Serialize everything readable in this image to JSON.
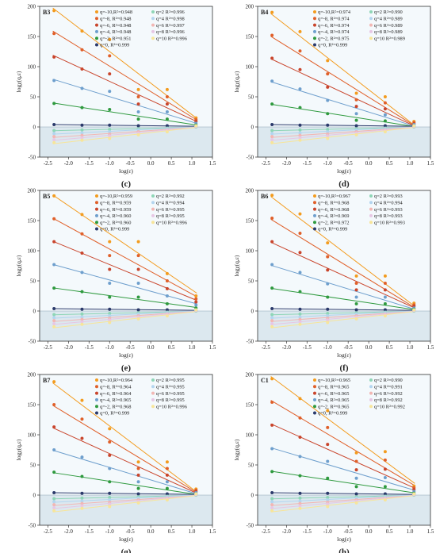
{
  "chart_data": [
    {
      "type": "scatter",
      "panel_id": "B3",
      "caption": "(c)",
      "xlabel": "log(ε)",
      "ylabel": "logχ(q,ε)",
      "xlim": [
        -2.7,
        1.5
      ],
      "ylim": [
        -50,
        200
      ],
      "xticks": [
        "-2.5",
        "-2.0",
        "-1.5",
        "-1.0",
        "-0.5",
        "0.0",
        "0.5",
        "1.0",
        "1.5"
      ],
      "yticks": [
        "-50",
        "0",
        "50",
        "100",
        "150",
        "200"
      ],
      "x": [
        -2.35,
        -1.67,
        -1.0,
        -0.3,
        0.4,
        1.1
      ],
      "series": [
        {
          "legend": "q=-10,R²=0.948",
          "q": -10,
          "color": "#f39c1f",
          "values": [
            193,
            159,
            145,
            62,
            62,
            15
          ]
        },
        {
          "legend": "q=-8, R²=0.948",
          "q": -8,
          "color": "#e0602a",
          "values": [
            155,
            128,
            118,
            50,
            50,
            12
          ]
        },
        {
          "legend": "q=-6, R²=0.948",
          "q": -6,
          "color": "#c9452c",
          "values": [
            116,
            96,
            88,
            38,
            38,
            9
          ]
        },
        {
          "legend": "q=-4, R²=0.948",
          "q": -4,
          "color": "#6e9fcd",
          "values": [
            77,
            64,
            59,
            25,
            25,
            6
          ]
        },
        {
          "legend": "q=-2, R²=0.951",
          "q": -2,
          "color": "#2f9a3f",
          "values": [
            39,
            32,
            29,
            13,
            13,
            3
          ]
        },
        {
          "legend": "q=0, R²=0.999",
          "q": 0,
          "color": "#2b3a6b",
          "values": [
            4,
            3,
            3,
            2,
            2,
            1
          ]
        },
        {
          "legend": "q=2 R²=0.996",
          "q": 2,
          "color": "#8fd6b7",
          "values": [
            -6,
            -5,
            -4,
            -3,
            -2,
            0
          ]
        },
        {
          "legend": "q=4 R²=0.998",
          "q": 4,
          "color": "#b3d5ef",
          "values": [
            -11,
            -10,
            -8,
            -5,
            -3,
            1
          ]
        },
        {
          "legend": "q=6 R²=0.997",
          "q": 6,
          "color": "#f2b7b4",
          "values": [
            -16,
            -14,
            -12,
            -8,
            -5,
            1
          ]
        },
        {
          "legend": "q=8 R²=0.996",
          "q": 8,
          "color": "#e7c7e4",
          "values": [
            -21,
            -18,
            -15,
            -10,
            -6,
            1
          ]
        },
        {
          "legend": "q=10 R²=0.996",
          "q": 10,
          "color": "#f7e59a",
          "values": [
            -26,
            -22,
            -19,
            -13,
            -8,
            2
          ]
        }
      ]
    },
    {
      "type": "scatter",
      "panel_id": "B4",
      "caption": "(d)",
      "xlabel": "log(ε)",
      "ylabel": "logχ(q,ε)",
      "xlim": [
        -2.7,
        1.5
      ],
      "ylim": [
        -50,
        200
      ],
      "xticks": [
        "-2.5",
        "-2.0",
        "-1.5",
        "-1.0",
        "-0.5",
        "0.0",
        "0.5",
        "1.0",
        "1.5"
      ],
      "yticks": [
        "-50",
        "0",
        "50",
        "100",
        "150",
        "200"
      ],
      "x": [
        -2.35,
        -1.67,
        -1.0,
        -0.3,
        0.4,
        1.1
      ],
      "series": [
        {
          "legend": "q=-10,R²=0.974",
          "q": -10,
          "color": "#f39c1f",
          "values": [
            190,
            158,
            110,
            56,
            50,
            9
          ]
        },
        {
          "legend": "q=-8, R²=0.974",
          "q": -8,
          "color": "#e0602a",
          "values": [
            152,
            126,
            88,
            45,
            40,
            7
          ]
        },
        {
          "legend": "q=-6, R²=0.974",
          "q": -6,
          "color": "#c9452c",
          "values": [
            114,
            95,
            66,
            34,
            30,
            5
          ]
        },
        {
          "legend": "q=-4, R²=0.974",
          "q": -4,
          "color": "#6e9fcd",
          "values": [
            76,
            63,
            44,
            22,
            20,
            4
          ]
        },
        {
          "legend": "q=-2, R²=0.975",
          "q": -2,
          "color": "#2f9a3f",
          "values": [
            38,
            32,
            22,
            11,
            10,
            2
          ]
        },
        {
          "legend": "q=0, R²=0.999",
          "q": 0,
          "color": "#2b3a6b",
          "values": [
            4,
            3,
            3,
            2,
            2,
            1
          ]
        },
        {
          "legend": "q=2 R²=0.990",
          "q": 2,
          "color": "#8fd6b7",
          "values": [
            -6,
            -5,
            -4,
            -3,
            -2,
            0
          ]
        },
        {
          "legend": "q=4 R²=0.989",
          "q": 4,
          "color": "#b3d5ef",
          "values": [
            -11,
            -10,
            -8,
            -5,
            -3,
            1
          ]
        },
        {
          "legend": "q=6 R²=0.989",
          "q": 6,
          "color": "#f2b7b4",
          "values": [
            -16,
            -14,
            -12,
            -8,
            -5,
            1
          ]
        },
        {
          "legend": "q=8 R²=0.989",
          "q": 8,
          "color": "#e7c7e4",
          "values": [
            -21,
            -18,
            -15,
            -10,
            -6,
            1
          ]
        },
        {
          "legend": "q=10 R²=0.989",
          "q": 10,
          "color": "#f7e59a",
          "values": [
            -26,
            -22,
            -19,
            -13,
            -8,
            2
          ]
        }
      ]
    },
    {
      "type": "scatter",
      "panel_id": "B5",
      "caption": "(e)",
      "xlabel": "log(ε)",
      "ylabel": "logχ(q,ε)",
      "xlim": [
        -2.7,
        1.5
      ],
      "ylim": [
        -50,
        200
      ],
      "xticks": [
        "-2.5",
        "-2.0",
        "-1.5",
        "-1.0",
        "-0.5",
        "0.0",
        "0.5",
        "1.0",
        "1.5"
      ],
      "yticks": [
        "-50",
        "0",
        "50",
        "100",
        "150",
        "200"
      ],
      "x": [
        -2.35,
        -1.67,
        -1.0,
        -0.3,
        0.4,
        1.1
      ],
      "series": [
        {
          "legend": "q=-10,R²=0.959",
          "q": -10,
          "color": "#f39c1f",
          "values": [
            191,
            160,
            115,
            115,
            62,
            25
          ]
        },
        {
          "legend": "q=-8, R²=0.959",
          "q": -8,
          "color": "#e0602a",
          "values": [
            153,
            128,
            92,
            92,
            50,
            20
          ]
        },
        {
          "legend": "q=-6, R²=0.959",
          "q": -6,
          "color": "#c9452c",
          "values": [
            115,
            96,
            69,
            69,
            37,
            15
          ]
        },
        {
          "legend": "q=-4, R²=0.960",
          "q": -4,
          "color": "#6e9fcd",
          "values": [
            77,
            64,
            46,
            46,
            25,
            10
          ]
        },
        {
          "legend": "q=-2, R²=0.960",
          "q": -2,
          "color": "#2f9a3f",
          "values": [
            38,
            32,
            23,
            23,
            12,
            5
          ]
        },
        {
          "legend": "q=0, R²=0.999",
          "q": 0,
          "color": "#2b3a6b",
          "values": [
            4,
            3,
            3,
            2,
            2,
            1
          ]
        },
        {
          "legend": "q=2 R²=0.992",
          "q": 2,
          "color": "#8fd6b7",
          "values": [
            -6,
            -5,
            -4,
            -3,
            -2,
            0
          ]
        },
        {
          "legend": "q=4 R²=0.994",
          "q": 4,
          "color": "#b3d5ef",
          "values": [
            -11,
            -10,
            -8,
            -5,
            -3,
            1
          ]
        },
        {
          "legend": "q=6 R²=0.995",
          "q": 6,
          "color": "#f2b7b4",
          "values": [
            -16,
            -14,
            -12,
            -8,
            -5,
            1
          ]
        },
        {
          "legend": "q=8 R²=0.995",
          "q": 8,
          "color": "#e7c7e4",
          "values": [
            -21,
            -18,
            -15,
            -10,
            -6,
            1
          ]
        },
        {
          "legend": "q=10 R²=0.996",
          "q": 10,
          "color": "#f7e59a",
          "values": [
            -26,
            -22,
            -19,
            -13,
            -8,
            2
          ]
        }
      ]
    },
    {
      "type": "scatter",
      "panel_id": "B6",
      "caption": "(f)",
      "xlabel": "log(ε)",
      "ylabel": "logχ(q,ε)",
      "xlim": [
        -2.7,
        1.5
      ],
      "ylim": [
        -50,
        200
      ],
      "xticks": [
        "-2.5",
        "-2.0",
        "-1.5",
        "-1.0",
        "-0.5",
        "0.0",
        "0.5",
        "1.0",
        "1.5"
      ],
      "yticks": [
        "-50",
        "0",
        "50",
        "100",
        "150",
        "200"
      ],
      "x": [
        -2.35,
        -1.67,
        -1.0,
        -0.3,
        0.4,
        1.1
      ],
      "series": [
        {
          "legend": "q=-10,R²=0.967",
          "q": -10,
          "color": "#f39c1f",
          "values": [
            192,
            161,
            113,
            58,
            58,
            13
          ]
        },
        {
          "legend": "q=-8, R²=0.968",
          "q": -8,
          "color": "#e0602a",
          "values": [
            154,
            129,
            90,
            46,
            46,
            10
          ]
        },
        {
          "legend": "q=-6, R²=0.968",
          "q": -6,
          "color": "#c9452c",
          "values": [
            115,
            97,
            68,
            35,
            35,
            8
          ]
        },
        {
          "legend": "q=-4, R²=0.969",
          "q": -4,
          "color": "#6e9fcd",
          "values": [
            77,
            64,
            45,
            23,
            23,
            5
          ]
        },
        {
          "legend": "q=-2, R²=0.972",
          "q": -2,
          "color": "#2f9a3f",
          "values": [
            38,
            32,
            23,
            12,
            12,
            3
          ]
        },
        {
          "legend": "q=0, R²=0.999",
          "q": 0,
          "color": "#2b3a6b",
          "values": [
            4,
            3,
            3,
            2,
            2,
            1
          ]
        },
        {
          "legend": "q=2 R²=0.993",
          "q": 2,
          "color": "#8fd6b7",
          "values": [
            -6,
            -5,
            -4,
            -3,
            -2,
            0
          ]
        },
        {
          "legend": "q=4 R²=0.994",
          "q": 4,
          "color": "#b3d5ef",
          "values": [
            -11,
            -10,
            -8,
            -5,
            -3,
            1
          ]
        },
        {
          "legend": "q=6 R²=0.993",
          "q": 6,
          "color": "#f2b7b4",
          "values": [
            -16,
            -14,
            -12,
            -8,
            -5,
            1
          ]
        },
        {
          "legend": "q=8 R²=0.993",
          "q": 8,
          "color": "#e7c7e4",
          "values": [
            -21,
            -18,
            -15,
            -10,
            -6,
            1
          ]
        },
        {
          "legend": "q=10 R²=0.993",
          "q": 10,
          "color": "#f7e59a",
          "values": [
            -26,
            -22,
            -19,
            -13,
            -8,
            2
          ]
        }
      ]
    },
    {
      "type": "scatter",
      "panel_id": "B7",
      "caption": "(g)",
      "xlabel": "log(ε)",
      "ylabel": "logχ(q,ε)",
      "xlim": [
        -2.7,
        1.5
      ],
      "ylim": [
        -50,
        200
      ],
      "xticks": [
        "-2.5",
        "-2.0",
        "-1.5",
        "-1.0",
        "-0.5",
        "0.0",
        "0.5",
        "1.0",
        "1.5"
      ],
      "yticks": [
        "-50",
        "0",
        "50",
        "100",
        "150",
        "200"
      ],
      "x": [
        -2.35,
        -1.67,
        -1.0,
        -0.3,
        0.4,
        1.1
      ],
      "series": [
        {
          "legend": "q=-10,R²=0.964",
          "q": -10,
          "color": "#f39c1f",
          "values": [
            188,
            157,
            110,
            55,
            55,
            10
          ]
        },
        {
          "legend": "q=-8, R²=0.964",
          "q": -8,
          "color": "#e0602a",
          "values": [
            150,
            126,
            88,
            44,
            44,
            8
          ]
        },
        {
          "legend": "q=-6, R²=0.964",
          "q": -6,
          "color": "#c9452c",
          "values": [
            113,
            94,
            66,
            33,
            33,
            6
          ]
        },
        {
          "legend": "q=-4, R²=0.965",
          "q": -4,
          "color": "#6e9fcd",
          "values": [
            75,
            63,
            44,
            22,
            22,
            4
          ]
        },
        {
          "legend": "q=-2, R²=0.968",
          "q": -2,
          "color": "#2f9a3f",
          "values": [
            38,
            31,
            22,
            11,
            11,
            2
          ]
        },
        {
          "legend": "q=0, R²=0.999",
          "q": 0,
          "color": "#2b3a6b",
          "values": [
            4,
            3,
            3,
            2,
            2,
            1
          ]
        },
        {
          "legend": "q=2 R²=0.995",
          "q": 2,
          "color": "#8fd6b7",
          "values": [
            -6,
            -5,
            -4,
            -3,
            -2,
            0
          ]
        },
        {
          "legend": "q=4 R²=0.995",
          "q": 4,
          "color": "#b3d5ef",
          "values": [
            -11,
            -10,
            -8,
            -5,
            -3,
            1
          ]
        },
        {
          "legend": "q=6 R²=0.995",
          "q": 6,
          "color": "#f2b7b4",
          "values": [
            -16,
            -14,
            -12,
            -8,
            -5,
            1
          ]
        },
        {
          "legend": "q=8 R²=0.995",
          "q": 8,
          "color": "#e7c7e4",
          "values": [
            -21,
            -18,
            -15,
            -10,
            -6,
            1
          ]
        },
        {
          "legend": "q=10 R²=0.996",
          "q": 10,
          "color": "#f7e59a",
          "values": [
            -26,
            -22,
            -19,
            -13,
            -8,
            2
          ]
        }
      ]
    },
    {
      "type": "scatter",
      "panel_id": "C1",
      "caption": "(h)",
      "xlabel": "log(ε)",
      "ylabel": "logχ(q,ε)",
      "xlim": [
        -2.7,
        1.5
      ],
      "ylim": [
        -50,
        200
      ],
      "xticks": [
        "-2.5",
        "-2.0",
        "-1.5",
        "-1.0",
        "-0.5",
        "0.0",
        "0.5",
        "1.0",
        "1.5"
      ],
      "yticks": [
        "-50",
        "0",
        "50",
        "100",
        "150",
        "200"
      ],
      "x": [
        -2.35,
        -1.67,
        -1.0,
        -0.3,
        0.4,
        1.1
      ],
      "series": [
        {
          "legend": "q=-10,R²=0.965",
          "q": -10,
          "color": "#f39c1f",
          "values": [
            193,
            160,
            140,
            70,
            72,
            15
          ]
        },
        {
          "legend": "q=-8, R²=0.965",
          "q": -8,
          "color": "#e0602a",
          "values": [
            154,
            128,
            112,
            56,
            58,
            12
          ]
        },
        {
          "legend": "q=-6, R²=0.965",
          "q": -6,
          "color": "#c9452c",
          "values": [
            116,
            96,
            84,
            42,
            43,
            9
          ]
        },
        {
          "legend": "q=-4, R²=0.965",
          "q": -4,
          "color": "#6e9fcd",
          "values": [
            77,
            64,
            56,
            28,
            29,
            6
          ]
        },
        {
          "legend": "q=-2, R²=0.965",
          "q": -2,
          "color": "#2f9a3f",
          "values": [
            39,
            32,
            28,
            14,
            14,
            3
          ]
        },
        {
          "legend": "q=0, R²=0.999",
          "q": 0,
          "color": "#2b3a6b",
          "values": [
            4,
            3,
            3,
            2,
            2,
            1
          ]
        },
        {
          "legend": "q=2 R²=0.990",
          "q": 2,
          "color": "#8fd6b7",
          "values": [
            -6,
            -5,
            -4,
            -3,
            -2,
            0
          ]
        },
        {
          "legend": "q=4 R²=0.991",
          "q": 4,
          "color": "#b3d5ef",
          "values": [
            -11,
            -10,
            -8,
            -5,
            -3,
            1
          ]
        },
        {
          "legend": "q=6 R²=0.992",
          "q": 6,
          "color": "#f2b7b4",
          "values": [
            -16,
            -14,
            -12,
            -8,
            -5,
            1
          ]
        },
        {
          "legend": "q=8 R²=0.992",
          "q": 8,
          "color": "#e7c7e4",
          "values": [
            -21,
            -18,
            -15,
            -10,
            -6,
            1
          ]
        },
        {
          "legend": "q=10 R²=0.992",
          "q": 10,
          "color": "#f7e59a",
          "values": [
            -26,
            -22,
            -19,
            -13,
            -8,
            2
          ]
        }
      ]
    }
  ]
}
